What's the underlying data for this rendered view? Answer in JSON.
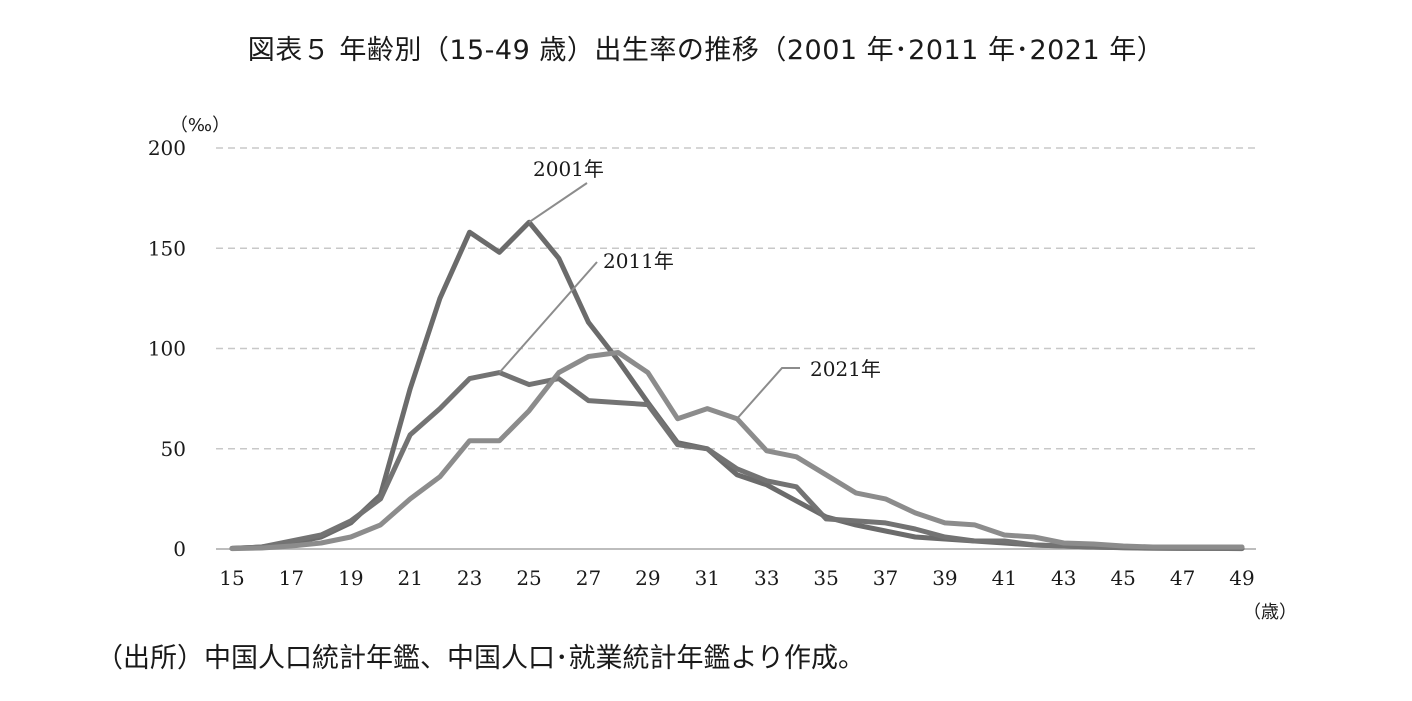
{
  "title": "図表５  年齢別（15-49 歳）出生率の推移（2001 年･2011 年･2021 年）",
  "source": "（出所）中国人口統計年鑑、中国人口･就業統計年鑑より作成。",
  "chart_data": {
    "type": "line",
    "y_unit": "（‰）",
    "x_unit": "（歳）",
    "ylim": [
      0,
      200
    ],
    "yticks": [
      0,
      50,
      100,
      150,
      200
    ],
    "xlim": [
      15,
      49
    ],
    "xticks": [
      15,
      17,
      19,
      21,
      23,
      25,
      27,
      29,
      31,
      33,
      35,
      37,
      39,
      41,
      43,
      45,
      47,
      49
    ],
    "grid": "horizontal dashed",
    "x": [
      15,
      16,
      17,
      18,
      19,
      20,
      21,
      22,
      23,
      24,
      25,
      26,
      27,
      28,
      29,
      30,
      31,
      32,
      33,
      34,
      35,
      36,
      37,
      38,
      39,
      40,
      41,
      42,
      43,
      44,
      45,
      46,
      47,
      48,
      49
    ],
    "series": [
      {
        "name": "2001年",
        "color": "#6b6b6b",
        "values": [
          0.3,
          1,
          3,
          6,
          13,
          27,
          80,
          125,
          158,
          148,
          163,
          145,
          113,
          94,
          73,
          53,
          50,
          37,
          32,
          24,
          16,
          12,
          9,
          6,
          5,
          4,
          3,
          2,
          1.5,
          1,
          0.7,
          0.5,
          0.4,
          0.3,
          0.3
        ]
      },
      {
        "name": "2011年",
        "color": "#737373",
        "values": [
          0.3,
          1,
          4,
          7,
          14,
          25,
          57,
          70,
          85,
          88,
          82,
          85,
          74,
          73,
          72,
          52,
          50,
          40,
          34,
          31,
          15,
          14,
          13,
          10,
          6,
          4,
          4,
          2,
          1.5,
          1,
          0.6,
          0.4,
          0.3,
          0.3,
          0.2
        ]
      },
      {
        "name": "2021年",
        "color": "#8c8c8c",
        "values": [
          0.2,
          0.5,
          1.5,
          3,
          6,
          12,
          25,
          36,
          54,
          54,
          69,
          88,
          96,
          98,
          88,
          65,
          70,
          65,
          49,
          46,
          37,
          28,
          25,
          18,
          13,
          12,
          7,
          6,
          3,
          2.5,
          1.5,
          1,
          1,
          1,
          1
        ]
      }
    ],
    "annotations": [
      {
        "text": "2001年",
        "series": 0,
        "at_x": 25
      },
      {
        "text": "2011年",
        "series": 1,
        "at_x": 24
      },
      {
        "text": "2021年",
        "series": 2,
        "at_x": 32
      }
    ]
  }
}
